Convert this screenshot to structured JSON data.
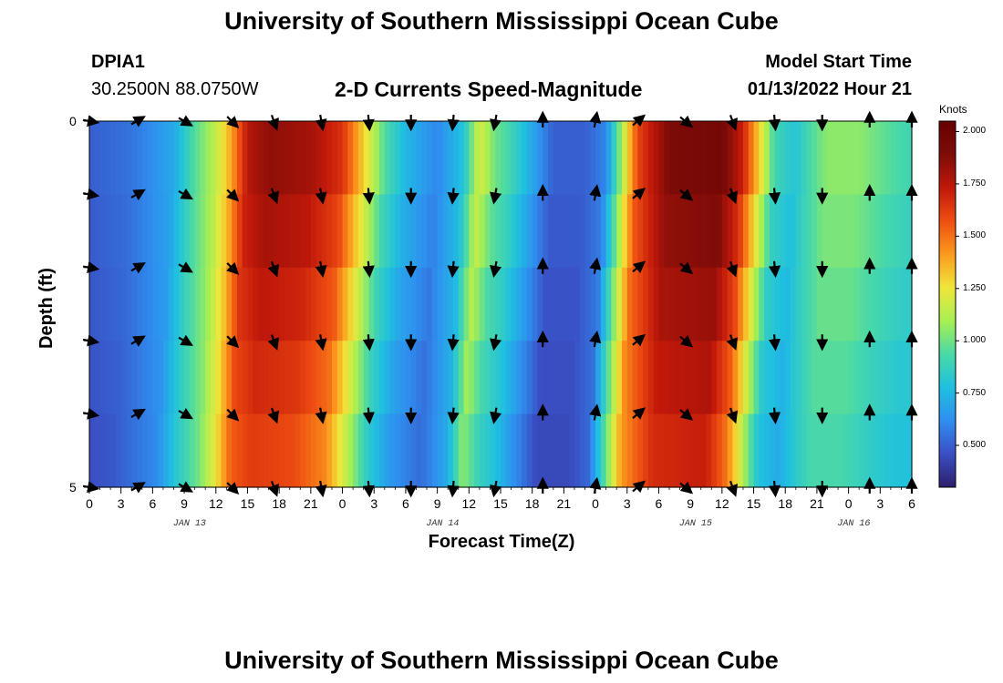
{
  "header": {
    "title": "University of Southern Mississippi Ocean Cube",
    "station": "DPIA1",
    "coords": "30.2500N  88.0750W",
    "subtitle": "2-D Currents Speed-Magnitude",
    "start_label": "Model Start Time",
    "start_value": "01/13/2022 Hour 21"
  },
  "footer": {
    "title": "University of Southern Mississippi Ocean Cube"
  },
  "colors": {
    "ramp": [
      "#2c1f6b",
      "#3a4fc4",
      "#2f8ef0",
      "#1fc0e0",
      "#4ad9a6",
      "#a8ef52",
      "#f0e63a",
      "#fb9a1c",
      "#ee4e12",
      "#c0180a",
      "#7e0c08",
      "#660000"
    ]
  },
  "chart_data": {
    "type": "heatmap",
    "title": "2-D Currents Speed-Magnitude",
    "xlabel": "Forecast Time(Z)",
    "ylabel": "Depth (ft)",
    "colorbar_label": "Knots",
    "colorbar_ticks": [
      "2.000",
      "1.750",
      "1.500",
      "1.250",
      "1.000",
      "0.750",
      "0.500"
    ],
    "colorbar_range": [
      0.3,
      2.05
    ],
    "x_hours": [
      0,
      3,
      6,
      9,
      12,
      15,
      18,
      21,
      24,
      27,
      30,
      33,
      36,
      39,
      42,
      45,
      48,
      51,
      54,
      57,
      60,
      63,
      66,
      69,
      72,
      75,
      78
    ],
    "x_tick_labels": [
      "0",
      "3",
      "6",
      "9",
      "12",
      "15",
      "18",
      "21",
      "0",
      "3",
      "6",
      "9",
      "12",
      "15",
      "18",
      "21",
      "0",
      "3",
      "6",
      "9",
      "12",
      "15",
      "18",
      "21",
      "0",
      "3",
      "6"
    ],
    "xlim": [
      0,
      78
    ],
    "date_labels": [
      {
        "text": "JAN 13",
        "hour": 9.5
      },
      {
        "text": "JAN 14",
        "hour": 33.5
      },
      {
        "text": "JAN 15",
        "hour": 57.5
      },
      {
        "text": "JAN 16",
        "hour": 72.5
      }
    ],
    "depth_levels": [
      0,
      1,
      2,
      3,
      4,
      5
    ],
    "y_tick_labels": [
      "0",
      "5"
    ],
    "ylim": [
      0,
      5
    ],
    "speed_profile": [
      [
        0,
        0.5
      ],
      [
        4,
        0.55
      ],
      [
        8,
        0.7
      ],
      [
        10,
        0.95
      ],
      [
        12,
        1.15
      ],
      [
        13.5,
        1.4
      ],
      [
        15,
        1.75
      ],
      [
        17,
        1.85
      ],
      [
        21,
        1.8
      ],
      [
        24,
        1.65
      ],
      [
        26,
        1.3
      ],
      [
        28,
        0.95
      ],
      [
        30,
        0.75
      ],
      [
        33,
        0.6
      ],
      [
        35.5,
        0.8
      ],
      [
        37,
        1.2
      ],
      [
        38.5,
        1.0
      ],
      [
        40,
        0.9
      ],
      [
        44,
        0.5
      ],
      [
        47,
        0.5
      ],
      [
        49,
        0.6
      ],
      [
        50.5,
        1.1
      ],
      [
        52,
        1.6
      ],
      [
        55,
        1.9
      ],
      [
        60,
        1.95
      ],
      [
        62,
        1.7
      ],
      [
        63.5,
        1.3
      ],
      [
        65,
        0.9
      ],
      [
        67,
        0.8
      ],
      [
        68,
        0.9
      ],
      [
        70,
        1.05
      ],
      [
        73,
        1.05
      ],
      [
        76,
        0.95
      ],
      [
        78,
        0.9
      ]
    ],
    "arrow_hours": [
      0,
      4.5,
      9,
      13.5,
      17.5,
      22,
      26.5,
      30.5,
      34.5,
      38.5,
      43,
      48,
      52,
      56.5,
      61,
      65,
      69.5,
      74,
      78
    ],
    "arrow_depths": [
      0,
      1,
      2,
      3,
      4,
      5
    ],
    "arrow_dirs_deg": [
      100,
      60,
      120,
      135,
      160,
      170,
      175,
      180,
      185,
      190,
      0,
      10,
      50,
      130,
      160,
      175,
      180,
      0,
      0
    ]
  }
}
